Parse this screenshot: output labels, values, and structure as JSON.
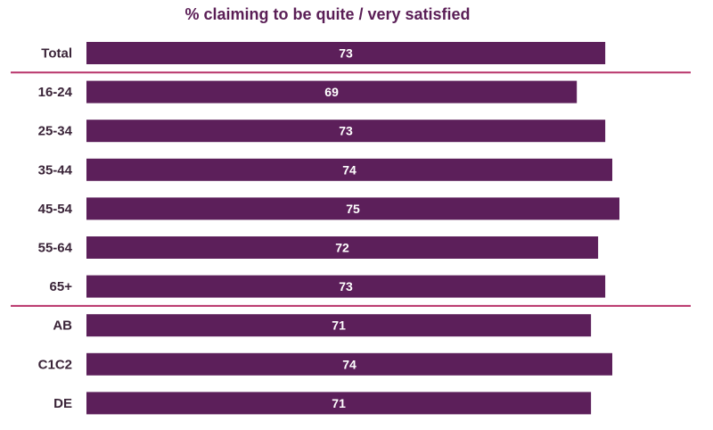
{
  "chart_data": {
    "type": "bar",
    "orientation": "horizontal",
    "title": "% claiming to be quite / very satisfied",
    "categories": [
      "Total",
      "16-24",
      "25-34",
      "35-44",
      "45-54",
      "55-64",
      "65+",
      "AB",
      "C1C2",
      "DE"
    ],
    "values": [
      73,
      69,
      73,
      74,
      75,
      72,
      73,
      71,
      74,
      71
    ],
    "value_labels": [
      "73",
      "69",
      "73",
      "74",
      "75",
      "72",
      "73",
      "71",
      "74",
      "71"
    ],
    "group_dividers_after": [
      "Total",
      "65+"
    ],
    "xlim": [
      0,
      75
    ],
    "grid": false,
    "legend": "none",
    "bar_color": "#5c1f5a",
    "divider_color": "#b8336a"
  }
}
